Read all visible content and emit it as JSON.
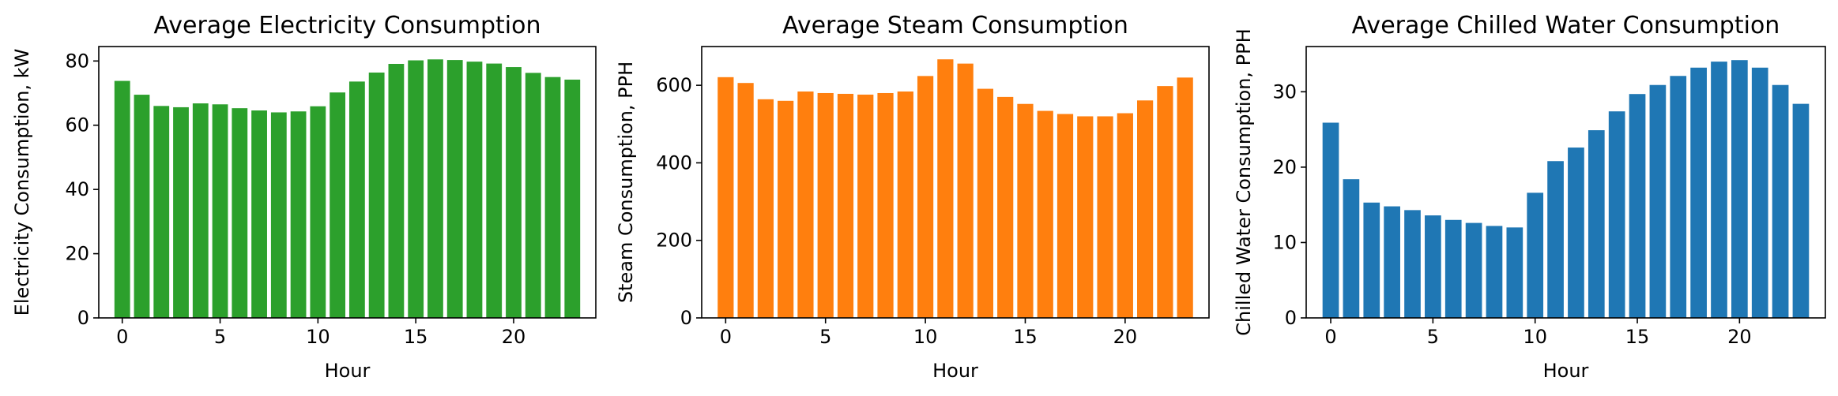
{
  "chart_data": [
    {
      "type": "bar",
      "title": "Average Electricity Consumption",
      "xlabel": "Hour",
      "ylabel": "Electricity Consumption, kW",
      "color": "#2ca02c",
      "x": [
        0,
        1,
        2,
        3,
        4,
        5,
        6,
        7,
        8,
        9,
        10,
        11,
        12,
        13,
        14,
        15,
        16,
        17,
        18,
        19,
        20,
        21,
        22,
        23
      ],
      "values": [
        73.8,
        69.5,
        66.0,
        65.6,
        66.8,
        66.5,
        65.3,
        64.6,
        64.0,
        64.3,
        65.9,
        70.2,
        73.6,
        76.4,
        79.1,
        80.2,
        80.5,
        80.3,
        79.8,
        79.2,
        78.1,
        76.3,
        75.0,
        74.2
      ],
      "xlim": [
        -1.2,
        24.2
      ],
      "ylim": [
        0,
        84.5
      ],
      "xticks": [
        0,
        5,
        10,
        15,
        20
      ],
      "yticks": [
        0,
        20,
        40,
        60,
        80
      ],
      "grid": false
    },
    {
      "type": "bar",
      "title": "Average Steam Consumption",
      "xlabel": "Hour",
      "ylabel": "Steam Consumption, PPH",
      "color": "#ff7f0e",
      "x": [
        0,
        1,
        2,
        3,
        4,
        5,
        6,
        7,
        8,
        9,
        10,
        11,
        12,
        13,
        14,
        15,
        16,
        17,
        18,
        19,
        20,
        21,
        22,
        23
      ],
      "values": [
        621,
        606,
        564,
        560,
        584,
        580,
        578,
        576,
        580,
        584,
        624,
        667,
        656,
        591,
        570,
        552,
        534,
        526,
        520,
        520,
        528,
        561,
        598,
        620
      ],
      "xlim": [
        -1.2,
        24.2
      ],
      "ylim": [
        0,
        700
      ],
      "xticks": [
        0,
        5,
        10,
        15,
        20
      ],
      "yticks": [
        0,
        200,
        400,
        600
      ],
      "grid": false
    },
    {
      "type": "bar",
      "title": "Average Chilled Water Consumption",
      "xlabel": "Hour",
      "ylabel": "Chilled Water Consumption, PPH",
      "color": "#1f77b4",
      "x": [
        0,
        1,
        2,
        3,
        4,
        5,
        6,
        7,
        8,
        9,
        10,
        11,
        12,
        13,
        14,
        15,
        16,
        17,
        18,
        19,
        20,
        21,
        22,
        23
      ],
      "values": [
        25.9,
        18.4,
        15.3,
        14.8,
        14.3,
        13.6,
        13.0,
        12.6,
        12.2,
        12.0,
        16.6,
        20.8,
        22.6,
        24.9,
        27.4,
        29.7,
        30.9,
        32.1,
        33.2,
        34.0,
        34.2,
        33.2,
        30.9,
        28.4
      ],
      "xlim": [
        -1.2,
        24.2
      ],
      "ylim": [
        0,
        36
      ],
      "xticks": [
        0,
        5,
        10,
        15,
        20
      ],
      "yticks": [
        0,
        10,
        20,
        30
      ],
      "grid": false
    }
  ]
}
